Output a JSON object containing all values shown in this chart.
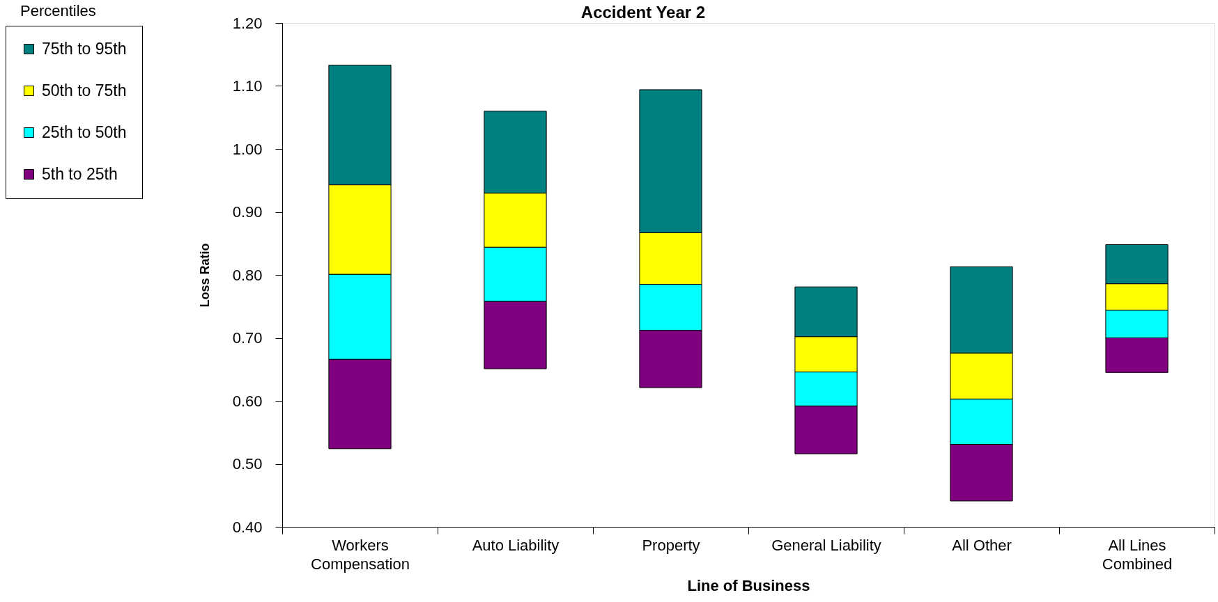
{
  "chart_data": {
    "type": "bar",
    "title": "Accident Year 2",
    "xlabel": "Line of Business",
    "ylabel": "Loss Ratio",
    "legend_title": "Percentiles",
    "categories": [
      "Workers Compensation",
      "Auto Liability",
      "Property",
      "General Liability",
      "All Other",
      "All Lines Combined"
    ],
    "series": [
      {
        "name": "5th to 25th",
        "color": "#800080",
        "values": [
          0.142,
          0.107,
          0.091,
          0.076,
          0.09,
          0.055
        ],
        "base": [
          0.524,
          0.651,
          0.621,
          0.516,
          0.441,
          0.645
        ]
      },
      {
        "name": "25th to 50th",
        "color": "#00ffff",
        "values": [
          0.135,
          0.086,
          0.073,
          0.054,
          0.072,
          0.044
        ],
        "base": [
          0.666,
          0.758,
          0.712,
          0.592,
          0.531,
          0.7
        ]
      },
      {
        "name": "50th to 75th",
        "color": "#ffff00",
        "values": [
          0.142,
          0.086,
          0.082,
          0.056,
          0.073,
          0.042
        ],
        "base": [
          0.801,
          0.844,
          0.785,
          0.646,
          0.603,
          0.744
        ]
      },
      {
        "name": "75th to 95th",
        "color": "#008080",
        "values": [
          0.19,
          0.13,
          0.227,
          0.079,
          0.137,
          0.062
        ],
        "base": [
          0.943,
          0.93,
          0.867,
          0.702,
          0.676,
          0.786
        ]
      }
    ],
    "ylim": [
      0.4,
      1.2
    ],
    "yticks": [
      {
        "value": 0.4,
        "label": "0.40"
      },
      {
        "value": 0.5,
        "label": "0.50"
      },
      {
        "value": 0.6,
        "label": "0.60"
      },
      {
        "value": 0.7,
        "label": "0.70"
      },
      {
        "value": 0.8,
        "label": "0.80"
      },
      {
        "value": 0.9,
        "label": "0.90"
      },
      {
        "value": 1.0,
        "label": "1.00"
      },
      {
        "value": 1.1,
        "label": "1.10"
      },
      {
        "value": 1.2,
        "label": "1.20"
      }
    ],
    "grid": false,
    "legend": "top left"
  }
}
